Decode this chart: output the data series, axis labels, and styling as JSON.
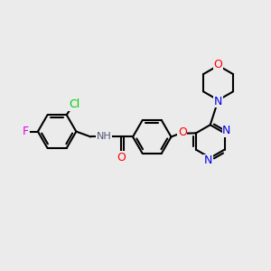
{
  "bg": "#ebebeb",
  "bc": "#000000",
  "bw": 1.5,
  "fs": 9,
  "colors": {
    "F": "#e000e0",
    "Cl": "#00cc00",
    "O": "#ff0000",
    "N": "#0000ee",
    "H": "#555577",
    "C": "#000000"
  },
  "dbl_off": 0.09,
  "dbl_trim": 0.18
}
